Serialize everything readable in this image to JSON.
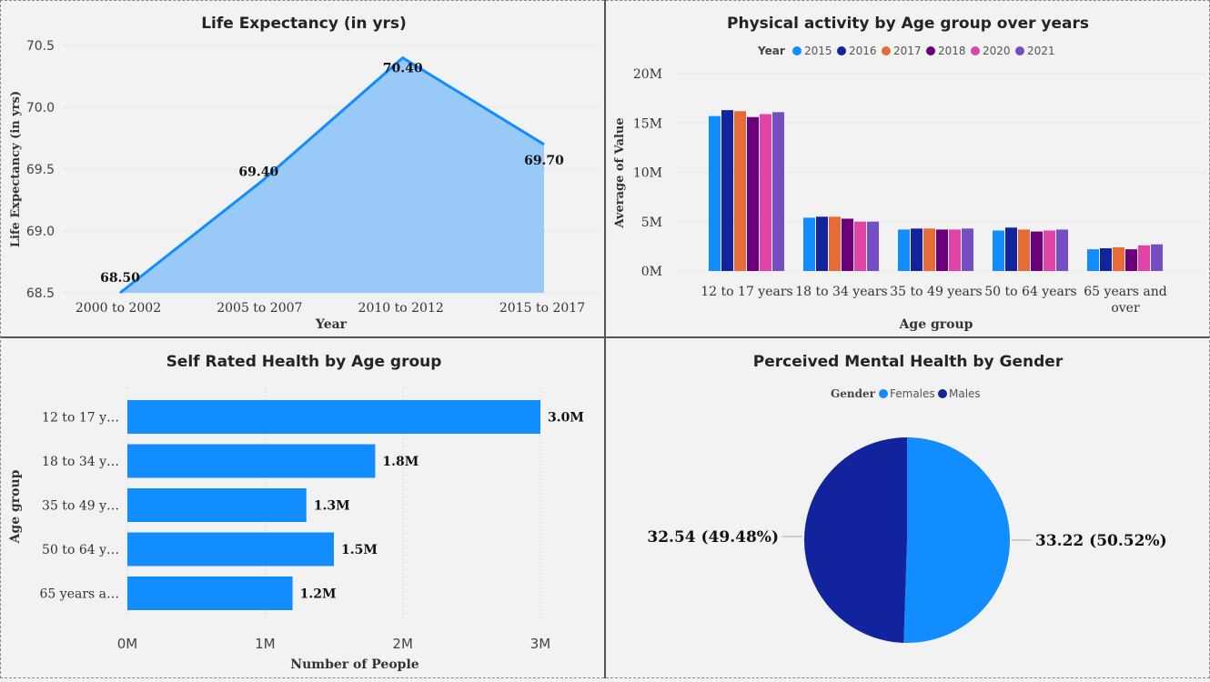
{
  "chart_data": [
    {
      "type": "area",
      "title": "Life Expectancy (in yrs)",
      "xlabel": "Year",
      "ylabel": "Life Expectancy (in yrs)",
      "categories": [
        "2000 to 2002",
        "2005 to 2007",
        "2010 to 2012",
        "2015 to 2017"
      ],
      "values": [
        68.5,
        69.4,
        70.4,
        69.7
      ],
      "data_labels": [
        "68.50",
        "69.40",
        "70.40",
        "69.70"
      ],
      "yticks": [
        "70.5",
        "70.0",
        "69.5",
        "69.0",
        "68.5"
      ],
      "ylim": [
        68.5,
        70.5
      ],
      "grid": true,
      "colors": {
        "line": "#118dff",
        "fill": "#99c9f6"
      }
    },
    {
      "type": "bar",
      "title": "Physical activity by Age group over years",
      "xlabel": "Age group",
      "ylabel": "Average of Value",
      "legend_title": "Year",
      "legend_position": "top-center",
      "categories": [
        "12 to 17 years",
        "18 to 34 years",
        "35 to 49 years",
        "50 to 64 years",
        "65 years and over"
      ],
      "category_labels": [
        [
          "12 to 17 years"
        ],
        [
          "18 to 34 years"
        ],
        [
          "35 to 49 years"
        ],
        [
          "50 to 64 years"
        ],
        [
          "65 years and",
          "over"
        ]
      ],
      "yticks": [
        "20M",
        "15M",
        "10M",
        "5M",
        "0M"
      ],
      "ylim": [
        0,
        20000000
      ],
      "grid": true,
      "series": [
        {
          "name": "2015",
          "color": "#118dff",
          "values": [
            15700000,
            5400000,
            4200000,
            4100000,
            2200000
          ]
        },
        {
          "name": "2016",
          "color": "#12239e",
          "values": [
            16300000,
            5500000,
            4300000,
            4400000,
            2300000
          ]
        },
        {
          "name": "2017",
          "color": "#e66c37",
          "values": [
            16200000,
            5500000,
            4300000,
            4200000,
            2400000
          ]
        },
        {
          "name": "2018",
          "color": "#6b007b",
          "values": [
            15600000,
            5300000,
            4200000,
            4000000,
            2200000
          ]
        },
        {
          "name": "2020",
          "color": "#e044a7",
          "values": [
            15900000,
            5000000,
            4200000,
            4100000,
            2600000
          ]
        },
        {
          "name": "2021",
          "color": "#744ec2",
          "values": [
            16100000,
            5000000,
            4300000,
            4200000,
            2700000
          ]
        }
      ]
    },
    {
      "type": "bar",
      "orientation": "horizontal",
      "title": "Self Rated Health by Age group",
      "xlabel": "Number of People",
      "ylabel": "Age group",
      "categories": [
        "12 to 17 y…",
        "18 to 34 y…",
        "35 to 49 y…",
        "50 to 64 y…",
        "65 years a…"
      ],
      "values": [
        3000000,
        1800000,
        1300000,
        1500000,
        1200000
      ],
      "data_labels": [
        "3.0M",
        "1.8M",
        "1.3M",
        "1.5M",
        "1.2M"
      ],
      "xticks": [
        "0M",
        "1M",
        "2M",
        "3M"
      ],
      "xlim": [
        0,
        3000000
      ],
      "grid": true,
      "color": "#118dff"
    },
    {
      "type": "pie",
      "title": "Perceived Mental Health by Gender",
      "legend_title": "Gender",
      "legend_position": "top-center",
      "slices": [
        {
          "name": "Females",
          "value": 33.22,
          "color": "#118dff",
          "label": "33.22 (50.52%)"
        },
        {
          "name": "Males",
          "value": 32.54,
          "color": "#12239e",
          "label": "32.54 (49.48%)"
        }
      ]
    }
  ]
}
